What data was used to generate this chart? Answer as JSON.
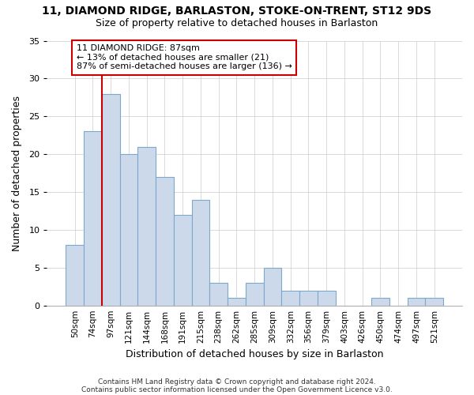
{
  "title": "11, DIAMOND RIDGE, BARLASTON, STOKE-ON-TRENT, ST12 9DS",
  "subtitle": "Size of property relative to detached houses in Barlaston",
  "xlabel": "Distribution of detached houses by size in Barlaston",
  "ylabel": "Number of detached properties",
  "categories": [
    "50sqm",
    "74sqm",
    "97sqm",
    "121sqm",
    "144sqm",
    "168sqm",
    "191sqm",
    "215sqm",
    "238sqm",
    "262sqm",
    "285sqm",
    "309sqm",
    "332sqm",
    "356sqm",
    "379sqm",
    "403sqm",
    "426sqm",
    "450sqm",
    "474sqm",
    "497sqm",
    "521sqm"
  ],
  "values": [
    8,
    23,
    28,
    20,
    21,
    17,
    12,
    14,
    3,
    1,
    3,
    5,
    2,
    2,
    2,
    0,
    0,
    1,
    0,
    1,
    1
  ],
  "bar_color": "#ccd9ea",
  "bar_edge_color": "#7da8cc",
  "background_color": "#ffffff",
  "grid_color": "#cccccc",
  "red_line_x": 1.5,
  "annotation_text": "11 DIAMOND RIDGE: 87sqm\n← 13% of detached houses are smaller (21)\n87% of semi-detached houses are larger (136) →",
  "annotation_box_color": "#ffffff",
  "annotation_border_color": "#cc0000",
  "ylim": [
    0,
    35
  ],
  "yticks": [
    0,
    5,
    10,
    15,
    20,
    25,
    30,
    35
  ],
  "footnote1": "Contains HM Land Registry data © Crown copyright and database right 2024.",
  "footnote2": "Contains public sector information licensed under the Open Government Licence v3.0."
}
